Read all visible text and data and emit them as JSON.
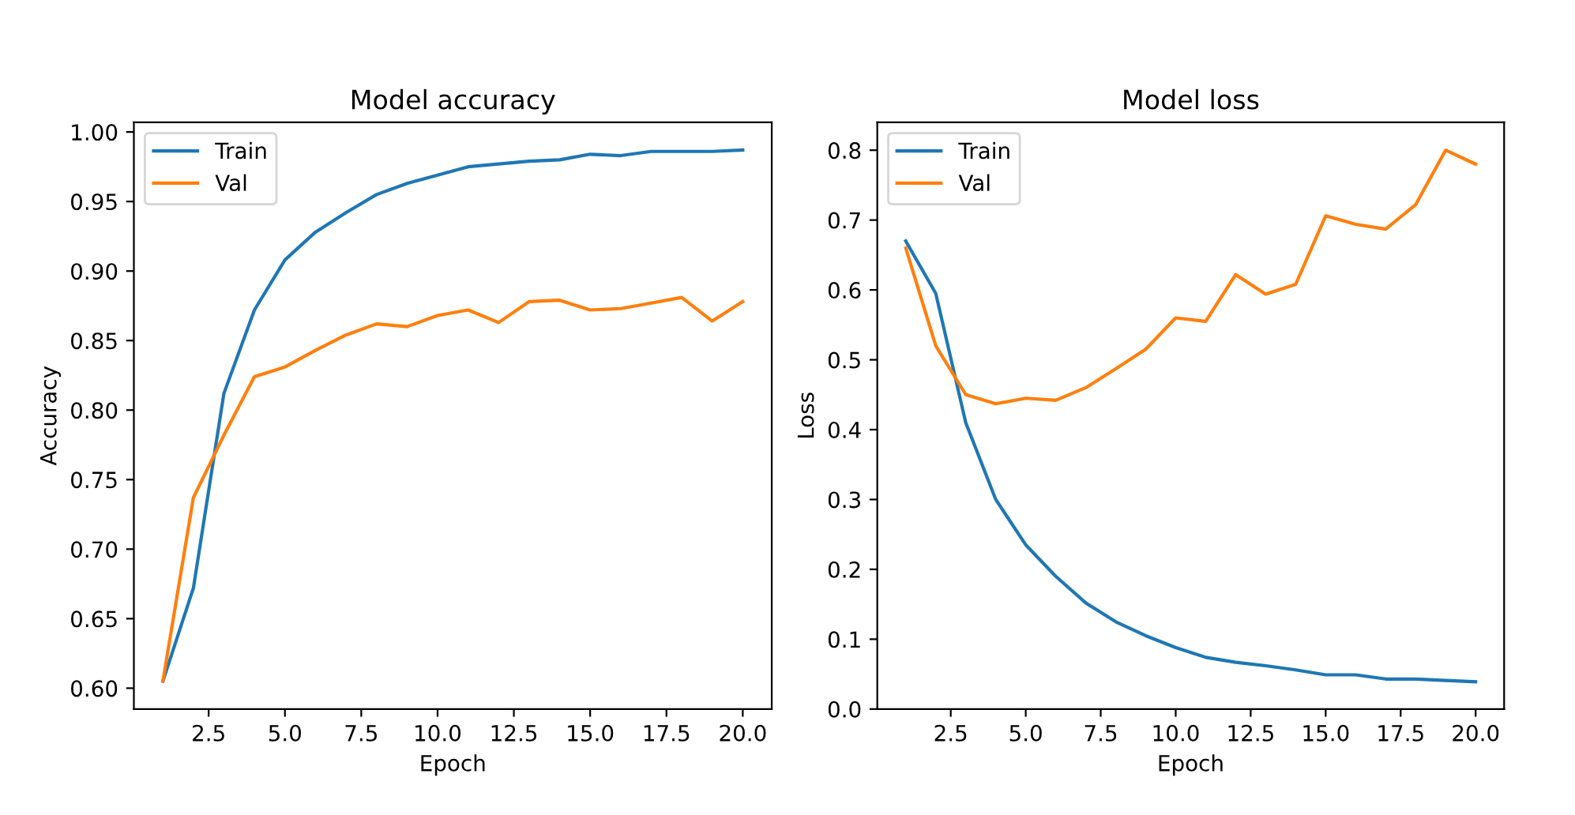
{
  "chart_data": [
    {
      "type": "line",
      "title": "Model accuracy",
      "xlabel": "Epoch",
      "ylabel": "Accuracy",
      "x": [
        1,
        2,
        3,
        4,
        5,
        6,
        7,
        8,
        9,
        10,
        11,
        12,
        13,
        14,
        15,
        16,
        17,
        18,
        19,
        20
      ],
      "series": [
        {
          "name": "Train",
          "color": "#1f77b4",
          "values": [
            0.605,
            0.672,
            0.812,
            0.872,
            0.908,
            0.928,
            0.942,
            0.955,
            0.963,
            0.969,
            0.975,
            0.977,
            0.979,
            0.98,
            0.984,
            0.983,
            0.986,
            0.986,
            0.986,
            0.987
          ]
        },
        {
          "name": "Val",
          "color": "#ff7f0e",
          "values": [
            0.605,
            0.737,
            0.782,
            0.824,
            0.831,
            0.843,
            0.854,
            0.862,
            0.86,
            0.868,
            0.872,
            0.863,
            0.878,
            0.879,
            0.872,
            0.873,
            0.877,
            0.881,
            0.864,
            0.878
          ]
        }
      ],
      "xlim": [
        0.05,
        20.95
      ],
      "xticks": [
        2.5,
        {
          "value": 5,
          "label": "5.0"
        },
        7.5,
        {
          "value": 10,
          "label": "10.0"
        },
        12.5,
        {
          "value": 15,
          "label": "15.0"
        },
        17.5,
        {
          "value": 20,
          "label": "20.0"
        }
      ],
      "ylim": [
        0.585,
        1.007
      ],
      "yticks": [
        {
          "value": 0.6,
          "label": "0.60"
        },
        0.65,
        {
          "value": 0.7,
          "label": "0.70"
        },
        0.75,
        {
          "value": 0.8,
          "label": "0.80"
        },
        0.85,
        {
          "value": 0.9,
          "label": "0.90"
        },
        0.95,
        {
          "value": 1,
          "label": "1.00"
        }
      ],
      "legend": "top left",
      "grid": false
    },
    {
      "type": "line",
      "title": "Model loss",
      "xlabel": "Epoch",
      "ylabel": "Loss",
      "x": [
        1,
        2,
        3,
        4,
        5,
        6,
        7,
        8,
        9,
        10,
        11,
        12,
        13,
        14,
        15,
        16,
        17,
        18,
        19,
        20
      ],
      "series": [
        {
          "name": "Train",
          "color": "#1f77b4",
          "values": [
            0.67,
            0.595,
            0.41,
            0.3,
            0.235,
            0.19,
            0.152,
            0.125,
            0.105,
            0.088,
            0.074,
            0.067,
            0.062,
            0.056,
            0.049,
            0.049,
            0.043,
            0.043,
            0.041,
            0.039
          ]
        },
        {
          "name": "Val",
          "color": "#ff7f0e",
          "values": [
            0.66,
            0.52,
            0.45,
            0.437,
            0.445,
            0.442,
            0.46,
            0.487,
            0.515,
            0.56,
            0.555,
            0.622,
            0.594,
            0.608,
            0.706,
            0.694,
            0.687,
            0.722,
            0.8,
            0.78
          ]
        }
      ],
      "xlim": [
        0.05,
        20.95
      ],
      "xticks": [
        2.5,
        {
          "value": 5,
          "label": "5.0"
        },
        7.5,
        {
          "value": 10,
          "label": "10.0"
        },
        12.5,
        {
          "value": 15,
          "label": "15.0"
        },
        17.5,
        {
          "value": 20,
          "label": "20.0"
        }
      ],
      "ylim": [
        0,
        0.84
      ],
      "yticks": [
        {
          "value": 0,
          "label": "0.0"
        },
        0.1,
        0.2,
        0.3,
        0.4,
        0.5,
        0.6,
        0.7,
        0.8
      ],
      "legend": "top left",
      "grid": false
    }
  ]
}
